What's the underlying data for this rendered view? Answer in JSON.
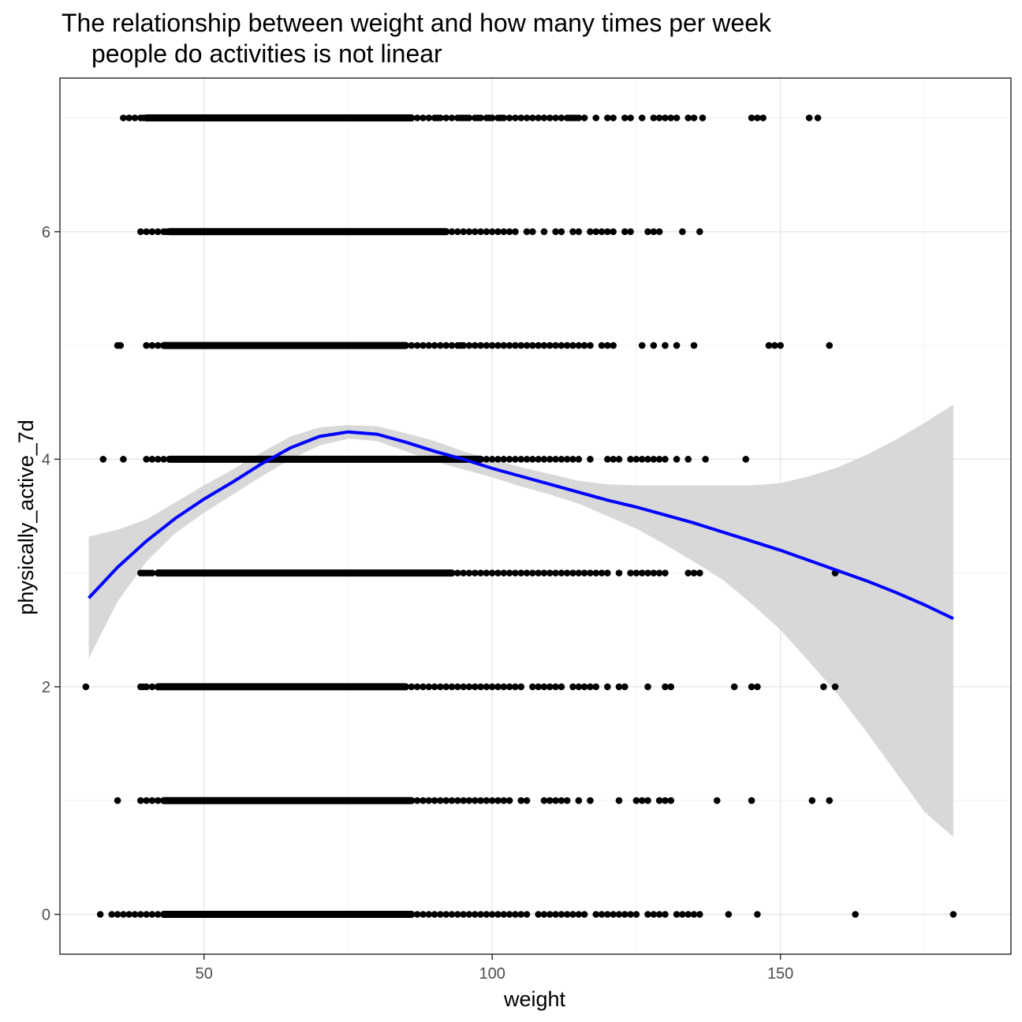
{
  "chart_data": {
    "type": "scatter",
    "title_lines": [
      "The relationship between weight and how many times per week",
      "people do activities is not linear"
    ],
    "xlabel": "weight",
    "ylabel": "physically_active_7d",
    "xlim": [
      25,
      190
    ],
    "ylim": [
      -0.35,
      7.35
    ],
    "x_ticks": [
      50,
      100,
      150
    ],
    "x_tick_labels": [
      "50",
      "100",
      "150"
    ],
    "x_minor_ticks": [
      25,
      75,
      125,
      175
    ],
    "y_ticks": [
      0,
      2,
      4,
      6
    ],
    "y_tick_labels": [
      "0",
      "2",
      "4",
      "6"
    ],
    "y_minor_ticks": [
      1,
      3,
      5,
      7
    ],
    "grid": true,
    "points_color": "#000000",
    "smooth_color": "#0000ff",
    "band_color": "#d4d4d4",
    "groups": [
      {
        "y": 7,
        "dense": [
          40,
          86
        ],
        "x": [
          36,
          37,
          38,
          39,
          39.5,
          40,
          86,
          87,
          88,
          89,
          90,
          90.5,
          91,
          92,
          93,
          94,
          94.5,
          95,
          95.5,
          96,
          97,
          97.5,
          98,
          99,
          99.5,
          100,
          101,
          101.5,
          102,
          103,
          104,
          105,
          106,
          107,
          108,
          109,
          110,
          111,
          112,
          113,
          113.5,
          114,
          114.5,
          115,
          116,
          118,
          120,
          121,
          123,
          124,
          126,
          128,
          129,
          130,
          131,
          132,
          134,
          135,
          136.5,
          145,
          146,
          147,
          155,
          156.5
        ]
      },
      {
        "y": 6,
        "dense": [
          44,
          92
        ],
        "x": [
          39,
          40,
          41,
          42,
          43,
          43.5,
          92,
          93,
          94,
          95,
          96,
          97,
          98,
          99,
          100,
          101,
          102,
          103,
          104,
          106,
          107,
          109,
          111,
          112,
          114,
          115,
          117,
          118,
          119,
          120,
          121,
          123,
          124,
          127,
          128,
          129,
          133,
          136
        ]
      },
      {
        "y": 5,
        "dense": [
          43,
          85
        ],
        "x": [
          35,
          35.5,
          40,
          41,
          42,
          85,
          86,
          87,
          88,
          89,
          90,
          91,
          92,
          93,
          94,
          94.5,
          95,
          96,
          97,
          98,
          99,
          100,
          101,
          102,
          103,
          104,
          105,
          106,
          107,
          108,
          109,
          110,
          111,
          112,
          113,
          114,
          115,
          116,
          117,
          119,
          120,
          121,
          126,
          128,
          130,
          132,
          135,
          148,
          149,
          150,
          158.5
        ]
      },
      {
        "y": 4,
        "dense": [
          44,
          98
        ],
        "x": [
          32.5,
          36,
          40,
          41,
          42,
          43,
          98,
          99,
          100,
          101,
          102,
          103,
          104,
          105,
          106,
          107,
          108,
          109,
          110,
          111,
          112,
          113,
          114,
          115,
          117,
          120,
          121,
          122,
          124,
          125,
          126,
          127,
          128,
          129,
          130,
          132,
          134,
          137,
          144
        ]
      },
      {
        "y": 3,
        "dense": [
          42,
          93
        ],
        "x": [
          39,
          39.5,
          40,
          40.5,
          41,
          93,
          94,
          95,
          96,
          97,
          98,
          99,
          100,
          101,
          102,
          103,
          104,
          105,
          106,
          107,
          108,
          109,
          110,
          111,
          112,
          113,
          114,
          115,
          116,
          117,
          118,
          119,
          120,
          122,
          124,
          125,
          126,
          127,
          128,
          129,
          130,
          134,
          135,
          136,
          159.5
        ]
      },
      {
        "y": 2,
        "dense": [
          42,
          85
        ],
        "x": [
          29.5,
          39,
          39.5,
          40,
          41,
          85,
          86,
          87,
          88,
          89,
          90,
          91,
          92,
          93,
          94,
          95,
          96,
          97,
          98,
          99,
          100,
          101,
          102,
          103,
          104,
          105,
          107,
          108,
          109,
          110,
          111,
          112,
          114,
          115,
          116,
          117,
          118,
          120,
          122,
          123,
          127,
          130,
          131,
          142,
          145,
          146,
          157.5,
          159.5
        ]
      },
      {
        "y": 1,
        "dense": [
          43,
          86
        ],
        "x": [
          35,
          39,
          40,
          41,
          42,
          86,
          87,
          88,
          89,
          90,
          91,
          92,
          93,
          94,
          95,
          96,
          97,
          98,
          99,
          100,
          101,
          102,
          103,
          105,
          106,
          109,
          110,
          111,
          112,
          113,
          115,
          117,
          122,
          125,
          126,
          127,
          129,
          130,
          131,
          139,
          145,
          155.5,
          158.5
        ]
      },
      {
        "y": 0,
        "dense": [
          43,
          86
        ],
        "x": [
          32,
          34,
          35,
          36,
          37,
          38,
          39,
          40,
          41,
          42,
          86,
          87,
          88,
          89,
          90,
          91,
          92,
          93,
          94,
          95,
          96,
          97,
          98,
          99,
          100,
          101,
          102,
          103,
          104,
          105,
          106,
          108,
          109,
          110,
          111,
          112,
          113,
          114,
          115,
          116,
          118,
          119,
          120,
          121,
          122,
          123,
          124,
          125,
          127,
          128,
          129,
          130,
          132,
          133,
          134,
          135,
          136,
          141,
          146,
          163,
          180
        ]
      }
    ],
    "smooth": {
      "x": [
        30,
        35,
        40,
        45,
        50,
        55,
        60,
        65,
        70,
        75,
        80,
        85,
        90,
        95,
        100,
        105,
        110,
        115,
        120,
        125,
        130,
        135,
        140,
        145,
        150,
        155,
        160,
        165,
        170,
        175,
        180
      ],
      "y": [
        2.78,
        3.05,
        3.28,
        3.48,
        3.65,
        3.8,
        3.96,
        4.1,
        4.2,
        4.24,
        4.22,
        4.15,
        4.07,
        4.0,
        3.92,
        3.85,
        3.78,
        3.71,
        3.64,
        3.58,
        3.51,
        3.44,
        3.36,
        3.28,
        3.2,
        3.11,
        3.02,
        2.93,
        2.83,
        2.72,
        2.6
      ],
      "upper": [
        3.32,
        3.38,
        3.47,
        3.62,
        3.77,
        3.91,
        4.06,
        4.2,
        4.28,
        4.3,
        4.29,
        4.23,
        4.16,
        4.07,
        4.0,
        3.93,
        3.87,
        3.81,
        3.78,
        3.77,
        3.77,
        3.77,
        3.77,
        3.77,
        3.79,
        3.85,
        3.93,
        4.04,
        4.17,
        4.32,
        4.48
      ],
      "lower": [
        2.25,
        2.75,
        3.1,
        3.35,
        3.53,
        3.69,
        3.85,
        4.0,
        4.12,
        4.18,
        4.16,
        4.07,
        3.98,
        3.91,
        3.84,
        3.76,
        3.69,
        3.61,
        3.5,
        3.39,
        3.25,
        3.1,
        2.94,
        2.73,
        2.5,
        2.22,
        1.93,
        1.6,
        1.25,
        0.9,
        0.68
      ]
    }
  }
}
